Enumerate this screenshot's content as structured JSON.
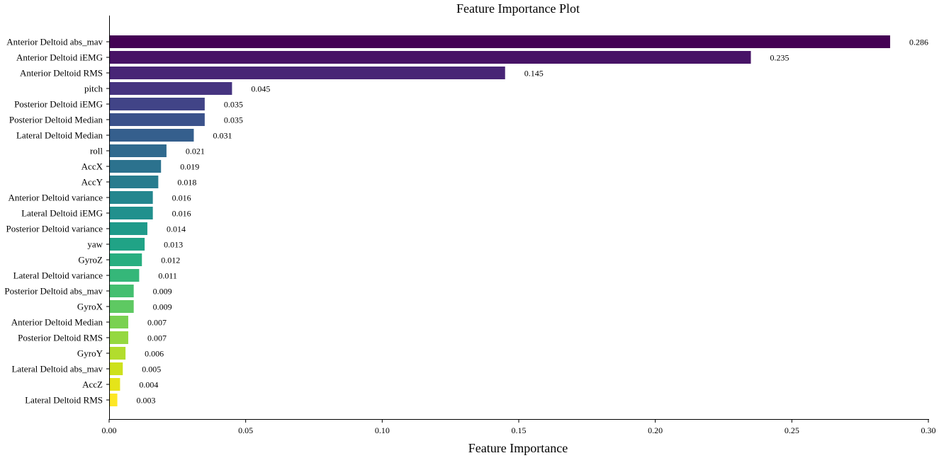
{
  "chart_data": {
    "type": "bar",
    "orientation": "horizontal",
    "title": "Feature Importance Plot",
    "xlabel": "Feature Importance",
    "ylabel": "",
    "xlim": [
      0,
      0.3
    ],
    "xticks": [
      0.0,
      0.05,
      0.1,
      0.15,
      0.2,
      0.25,
      0.3
    ],
    "xtick_labels": [
      "0.00",
      "0.05",
      "0.10",
      "0.15",
      "0.20",
      "0.25",
      "0.30"
    ],
    "grid": false,
    "colormap": "viridis",
    "categories": [
      "Anterior Deltoid abs_mav",
      "Anterior Deltoid iEMG",
      "Anterior Deltoid RMS",
      "pitch",
      "Posterior Deltoid iEMG",
      "Posterior Deltoid Median",
      "Lateral Deltoid Median",
      "roll",
      "AccX",
      "AccY",
      "Anterior Deltoid variance",
      "Lateral Deltoid iEMG",
      "Posterior Deltoid variance",
      "yaw",
      "GyroZ",
      "Lateral Deltoid variance",
      "Posterior Deltoid abs_mav",
      "GyroX",
      "Anterior Deltoid Median",
      "Posterior Deltoid RMS",
      "GyroY",
      "Lateral Deltoid abs_mav",
      "AccZ",
      "Lateral Deltoid RMS"
    ],
    "values": [
      0.286,
      0.235,
      0.145,
      0.045,
      0.035,
      0.035,
      0.031,
      0.021,
      0.019,
      0.018,
      0.016,
      0.016,
      0.014,
      0.013,
      0.012,
      0.011,
      0.009,
      0.009,
      0.007,
      0.007,
      0.006,
      0.005,
      0.004,
      0.003
    ],
    "value_labels": [
      "0.286",
      "0.235",
      "0.145",
      "0.045",
      "0.035",
      "0.035",
      "0.031",
      "0.021",
      "0.019",
      "0.018",
      "0.016",
      "0.016",
      "0.014",
      "0.013",
      "0.012",
      "0.011",
      "0.009",
      "0.009",
      "0.007",
      "0.007",
      "0.006",
      "0.005",
      "0.004",
      "0.003"
    ],
    "colors": [
      "#440154",
      "#471366",
      "#482576",
      "#463480",
      "#414487",
      "#3b528b",
      "#355f8d",
      "#306a8e",
      "#2c728e",
      "#287c8e",
      "#24868e",
      "#21908d",
      "#1f9a8a",
      "#20a386",
      "#28ae80",
      "#35b779",
      "#44bf70",
      "#5ec962",
      "#7ad151",
      "#95d840",
      "#b2dd2d",
      "#cde11d",
      "#e5e419",
      "#fde725"
    ]
  }
}
